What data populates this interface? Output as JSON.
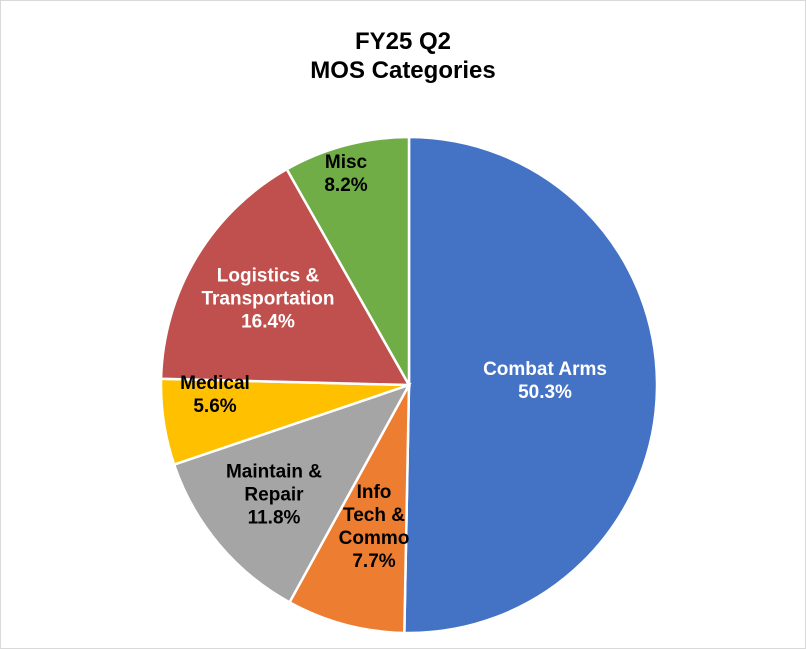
{
  "chart_data": {
    "type": "pie",
    "title": "FY25 Q2",
    "subtitle": "MOS Categories",
    "categories": [
      "Combat Arms",
      "Info Tech & Commo",
      "Maintain & Repair",
      "Medical",
      "Logistics & Transportation",
      "Misc"
    ],
    "values": [
      50.3,
      7.7,
      11.8,
      5.6,
      16.4,
      8.2
    ],
    "value_labels": [
      "50.3%",
      "7.7%",
      "11.8%",
      "5.6%",
      "16.4%",
      "8.2%"
    ],
    "colors": [
      "#4472c4",
      "#ed7d31",
      "#a5a5a5",
      "#ffc000",
      "#c0504d",
      "#70ad47"
    ]
  }
}
